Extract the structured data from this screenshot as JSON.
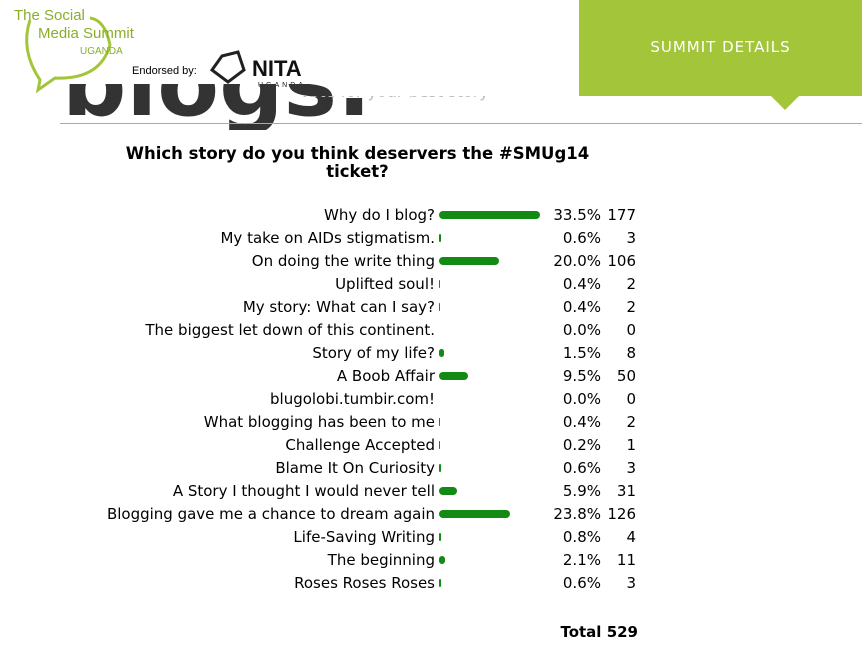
{
  "header": {
    "logo_line1": "The Social",
    "logo_line2": "Media Summit",
    "logo_line3": "UGANDA",
    "endorsed": "Endorsed by:",
    "nita": "NITA",
    "nita_sub": "UGANDA",
    "nav": "SUMMIT DETAILS",
    "backdrop": "blogs.",
    "backdrop_sub": "vote for your best story"
  },
  "chart_data": {
    "type": "bar",
    "title": "Which story do you think deservers the #SMUg14 ticket?",
    "categories": [
      "Why do I blog?",
      "My take on AIDs stigmatism.",
      "On doing the write thing",
      "Uplifted soul!",
      "My story: What can I say?",
      "The biggest let down of this continent.",
      "Story of my life?",
      "A Boob Affair",
      "blugolobi.tumbir.com!",
      "What blogging has been to me",
      "Challenge Accepted",
      "Blame It On Curiosity",
      "A Story I thought I would never tell",
      "Blogging gave me a chance to dream again",
      "Life-Saving Writing",
      "The beginning",
      "Roses Roses Roses"
    ],
    "values": [
      33.5,
      0.6,
      20.0,
      0.4,
      0.4,
      0.0,
      1.5,
      9.5,
      0.0,
      0.4,
      0.2,
      0.6,
      5.9,
      23.8,
      0.8,
      2.1,
      0.6
    ],
    "value_labels": [
      "33.5%",
      "0.6%",
      "20.0%",
      "0.4%",
      "0.4%",
      "0.0%",
      "1.5%",
      "9.5%",
      "0.0%",
      "0.4%",
      "0.2%",
      "0.6%",
      "5.9%",
      "23.8%",
      "0.8%",
      "2.1%",
      "0.6%"
    ],
    "counts": [
      177,
      3,
      106,
      2,
      2,
      0,
      8,
      50,
      0,
      2,
      1,
      3,
      31,
      126,
      4,
      11,
      3
    ],
    "color": "#138a13",
    "total_label": "Total",
    "total": 529
  }
}
